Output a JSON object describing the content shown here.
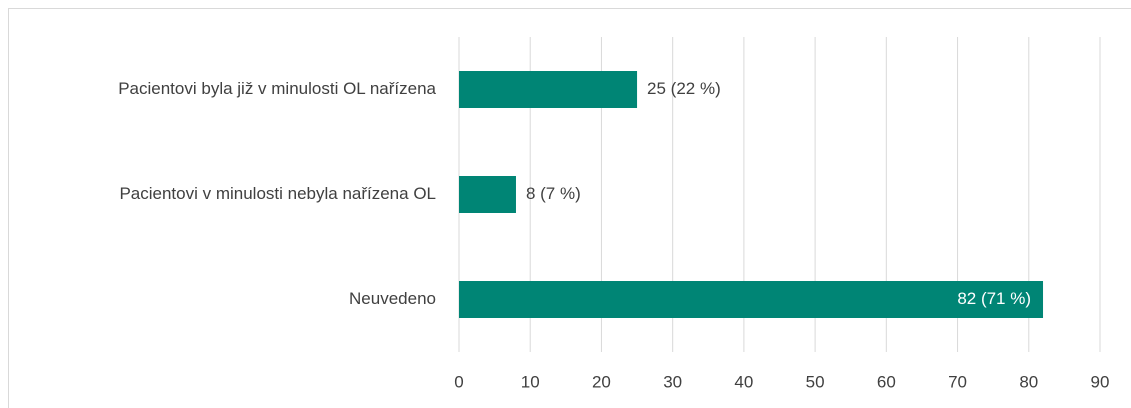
{
  "chart_data": {
    "type": "bar",
    "orientation": "horizontal",
    "categories": [
      "Pacientovi byla již v minulosti OL nařízena",
      "Pacientovi v minulosti nebyla nařízena OL",
      "Neuvedeno"
    ],
    "values": [
      25,
      8,
      82
    ],
    "value_labels": [
      "25 (22 %)",
      "8 (7 %)",
      "82 (71 %)"
    ],
    "color": "#008575",
    "xlim": [
      0,
      90
    ],
    "xticks": [
      0,
      10,
      20,
      30,
      40,
      50,
      60,
      70,
      80,
      90
    ],
    "grid": true
  }
}
